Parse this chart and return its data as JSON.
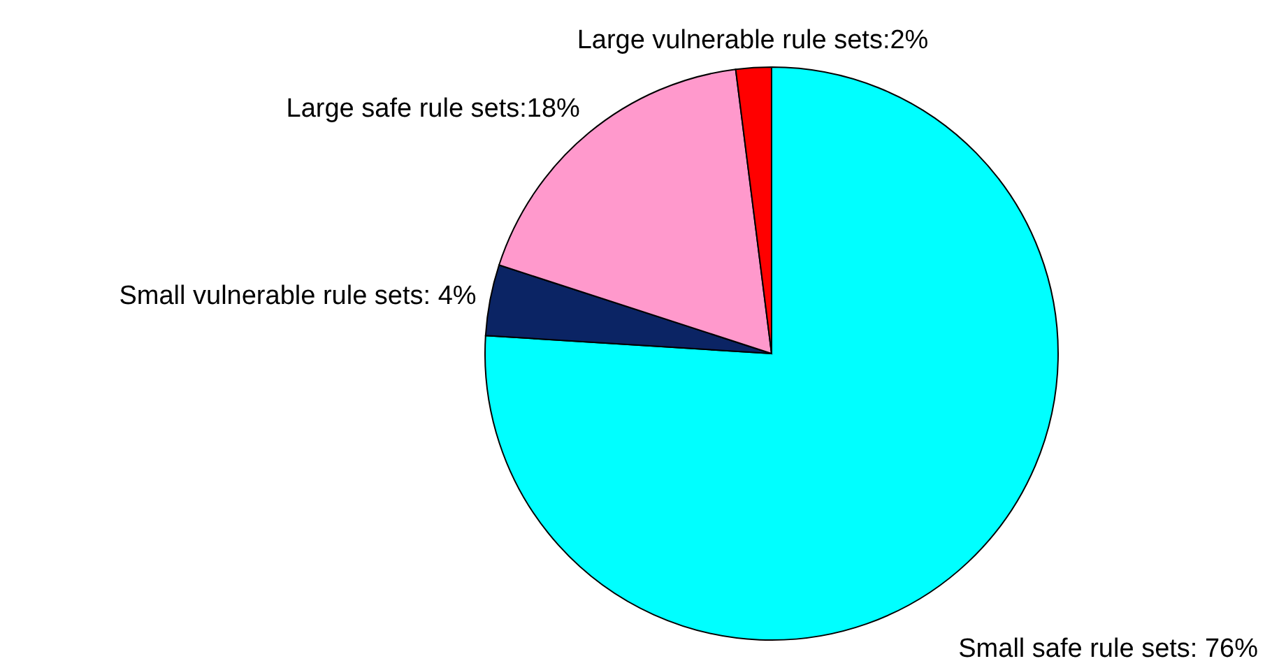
{
  "chart_data": {
    "type": "pie",
    "categories": [
      "Small safe rule sets: 76%",
      "Small vulnerable rule sets: 4%",
      "Large safe rule sets:18%",
      "Large vulnerable rule sets:2%"
    ],
    "values": [
      76,
      4,
      18,
      2
    ],
    "colors": [
      "#00ffff",
      "#0b2464",
      "#ff99cc",
      "#ff0000"
    ],
    "legend": false
  }
}
